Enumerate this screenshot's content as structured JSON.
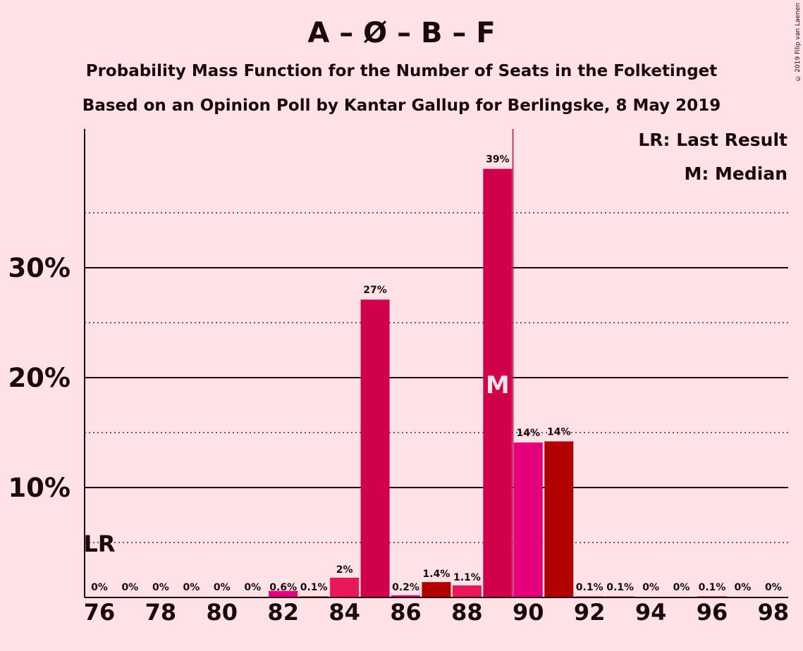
{
  "header": {
    "title": "A – Ø – B – F",
    "subtitle1": "Probability Mass Function for the Number of Seats in the Folketinget",
    "subtitle2": "Based on an Opinion Poll by Kantar Gallup for Berlingske, 8 May 2019",
    "copyright": "© 2019 Filip van Laenen"
  },
  "legend": {
    "lr": "LR: Last Result",
    "m": "M: Median"
  },
  "markers": {
    "lr_label": "LR",
    "lr_seat": 76,
    "median_label": "M",
    "median_seat": 89
  },
  "colors": {
    "background": "#ffe2e6",
    "A": "#d0004b",
    "O": "#e8195a",
    "B": "#e5007d",
    "F": "#b20000",
    "text": "#1a0a0c"
  },
  "chart_data": {
    "type": "bar",
    "title": "A – Ø – B – F",
    "xlabel": "",
    "ylabel": "",
    "ylim": [
      0,
      42
    ],
    "yticks_major": [
      10,
      20,
      30
    ],
    "ytick_labels": [
      "10%",
      "20%",
      "30%"
    ],
    "yticks_minor": [
      5,
      15,
      25,
      35
    ],
    "xtick_labels": [
      "76",
      "78",
      "80",
      "82",
      "84",
      "86",
      "88",
      "90",
      "92",
      "94",
      "96",
      "98"
    ],
    "grid": true,
    "categories": [
      76,
      77,
      78,
      79,
      80,
      81,
      82,
      83,
      84,
      85,
      86,
      87,
      88,
      89,
      90,
      91,
      92,
      93,
      94,
      95,
      96,
      97,
      98
    ],
    "values": [
      0,
      0,
      0,
      0,
      0,
      0,
      0.6,
      0.1,
      1.8,
      27.1,
      0.2,
      1.4,
      1.1,
      39.0,
      14.1,
      14.2,
      0.1,
      0.1,
      0,
      0,
      0.1,
      0,
      0
    ],
    "labels": [
      "0%",
      "0%",
      "0%",
      "0%",
      "0%",
      "0%",
      "0.6%",
      "0.1%",
      "2%",
      "27%",
      "0.2%",
      "1.4%",
      "1.1%",
      "39%",
      "14%",
      "14%",
      "0.1%",
      "0.1%",
      "0%",
      "0%",
      "0.1%",
      "0%",
      "0%"
    ],
    "bar_colors": [
      "#d0004b",
      "#e8195a",
      "#e5007d",
      "#b20000",
      "#d0004b",
      "#e8195a",
      "#e5007d",
      "#b20000",
      "#e8195a",
      "#d0004b",
      "#e5007d",
      "#b20000",
      "#e8195a",
      "#d0004b",
      "#e5007d",
      "#b20000",
      "#d0004b",
      "#e8195a",
      "#e5007d",
      "#b20000",
      "#d0004b",
      "#e8195a",
      "#e5007d"
    ]
  }
}
